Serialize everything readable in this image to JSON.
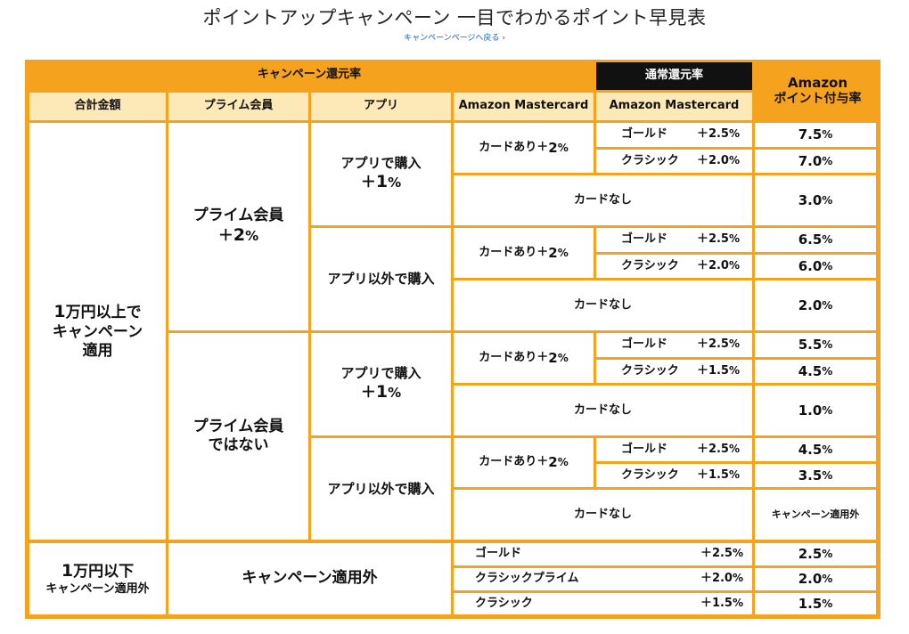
{
  "page": {
    "title": "ポイントアップキャンペーン 一目でわかるポイント早見表",
    "back_link": "キャンペーンページへ戻る",
    "back_chevron": "›"
  },
  "header": {
    "campaign_rate": "キャンペーン還元率",
    "normal_rate": "通常還元率",
    "amazon_points_line1": "Amazon",
    "amazon_points_line2": "ポイント付与率",
    "col_total": "合計金額",
    "col_prime": "プライム会員",
    "col_app": "アプリ",
    "col_mastercard_campaign": "Amazon Mastercard",
    "col_mastercard_normal": "Amazon Mastercard"
  },
  "total_over": {
    "num": "1",
    "line1": "万円以上で",
    "line2": "キャンペーン",
    "line3": "適用"
  },
  "total_under": {
    "num": "1",
    "line1": "万円以下",
    "line2": "キャンペーン適用外"
  },
  "prime_yes": {
    "line1": "プライム会員",
    "line2_plus": "＋",
    "line2_num": "2",
    "line2_pct": "%"
  },
  "prime_no": {
    "line1": "プライム会員",
    "line2": "ではない"
  },
  "app_yes": {
    "line1": "アプリで購入",
    "line2_plus": "＋",
    "line2_num": "1",
    "line2_pct": "%"
  },
  "app_no": "アプリ以外で購入",
  "card_yes": {
    "text": "カードあり＋",
    "num": "2",
    "pct": "%"
  },
  "card_none": "カードなし",
  "gold": "ゴールド",
  "classic": "クラシック",
  "classic_prime": "クラシックプライム",
  "plus25": {
    "v": "＋2.5",
    "p": "%"
  },
  "plus20": {
    "v": "＋2.0",
    "p": "%"
  },
  "plus15": {
    "v": "＋1.5",
    "p": "%"
  },
  "not_applicable": "キャンペーン適用外",
  "groups": [
    {
      "gold_rate": {
        "v": "7.5",
        "p": "%"
      },
      "classic_rate": {
        "v": "7.0",
        "p": "%"
      },
      "none_rate": {
        "v": "3.0",
        "p": "%"
      }
    },
    {
      "gold_rate": {
        "v": "6.5",
        "p": "%"
      },
      "classic_rate": {
        "v": "6.0",
        "p": "%"
      },
      "none_rate": {
        "v": "2.0",
        "p": "%"
      }
    },
    {
      "gold_rate": {
        "v": "5.5",
        "p": "%"
      },
      "classic_rate": {
        "v": "4.5",
        "p": "%"
      },
      "none_rate": {
        "v": "1.0",
        "p": "%"
      }
    },
    {
      "gold_rate": {
        "v": "4.5",
        "p": "%"
      },
      "classic_rate": {
        "v": "3.5",
        "p": "%"
      }
    }
  ],
  "under_rates": [
    {
      "v": "2.5",
      "p": "%"
    },
    {
      "v": "2.0",
      "p": "%"
    },
    {
      "v": "1.5",
      "p": "%"
    }
  ]
}
